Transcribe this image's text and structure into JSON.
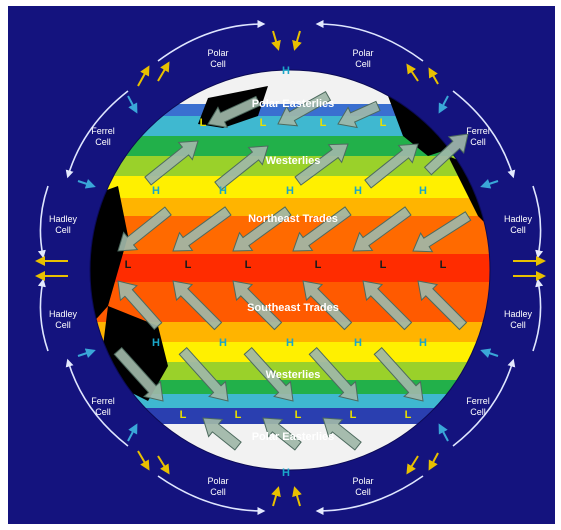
{
  "wind_belts": {
    "polar_easterlies_north": "Polar Easterlies",
    "westerlies_north": "Westerlies",
    "northeast_trades": "Northeast Trades",
    "southeast_trades": "Southeast Trades",
    "westerlies_south": "Westerlies",
    "polar_easterlies_south": "Polar Easterlies"
  },
  "cells": {
    "polar": "Polar\nCell",
    "ferrel": "Ferrel\nCell",
    "hadley": "Hadley\nCell"
  },
  "pressure": {
    "high": "H",
    "low": "L"
  },
  "colors": {
    "background": "#14137e",
    "high_label": "#1aa6c8",
    "low_label": "#1a1a1a",
    "low_label_polar": "#e8e000",
    "arrow_fill": "#9fb7a8",
    "circulation_arrow": "#dfe6ff",
    "surface_arrow_yellow": "#e8c000",
    "surface_arrow_cyan": "#3aa7d8"
  }
}
